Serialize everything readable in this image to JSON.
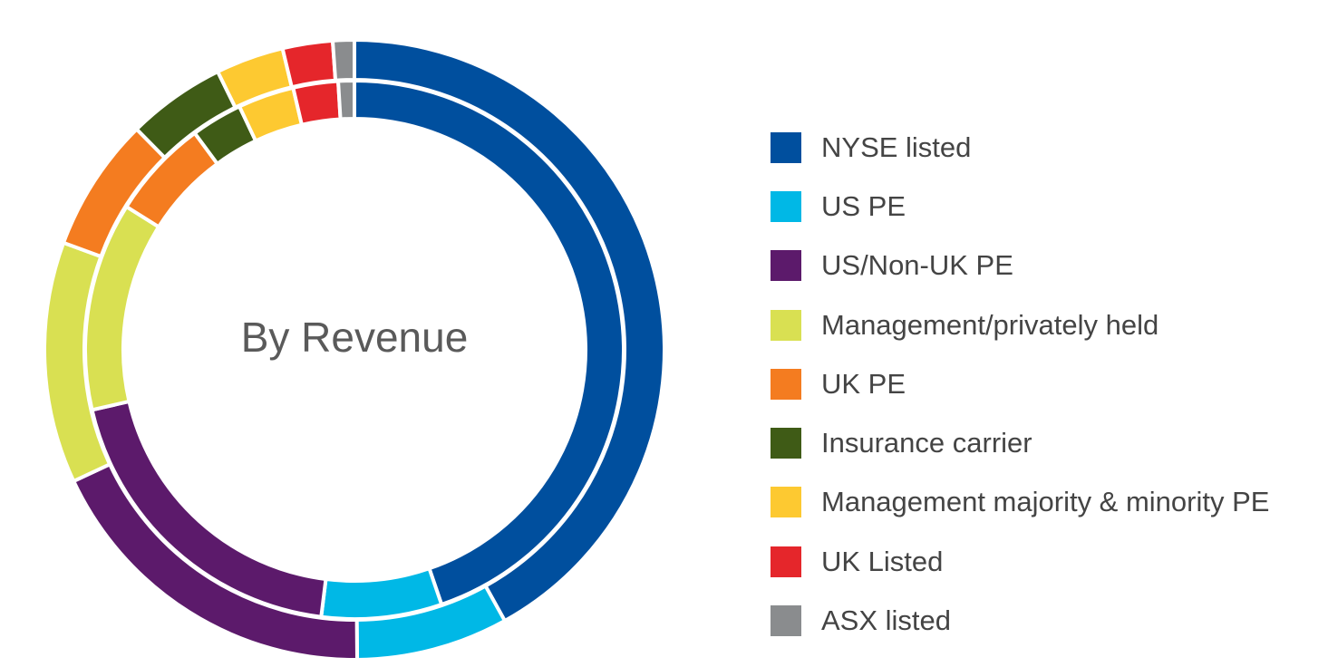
{
  "chart_data": {
    "type": "pie",
    "subtype": "double-donut",
    "center_label": "By Revenue",
    "legend_position": "right",
    "categories": [
      "NYSE listed",
      "US PE",
      "US/Non-UK PE",
      "Management/privately held",
      "UK PE",
      "Insurance carrier",
      "Management majority & minority PE",
      "UK Listed",
      "ASX listed"
    ],
    "colors": [
      "#004f9e",
      "#00b8e6",
      "#5c1a6b",
      "#d9e052",
      "#f47c20",
      "#3f5b16",
      "#fdc931",
      "#e5262b",
      "#8a8c8e"
    ],
    "series": [
      {
        "ring": "outer",
        "values": [
          45.0,
          8.5,
          19.5,
          13.5,
          7.5,
          5.5,
          3.8,
          2.8,
          1.2
        ]
      },
      {
        "ring": "inner",
        "values": [
          46.5,
          7.5,
          20.2,
          13.0,
          6.2,
          3.2,
          3.5,
          2.8,
          1.0
        ]
      }
    ]
  }
}
